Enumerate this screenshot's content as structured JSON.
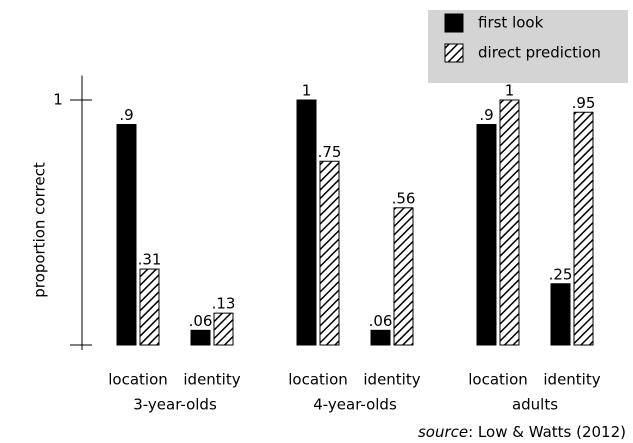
{
  "chart_data": {
    "type": "bar",
    "y_label": "proportion correct",
    "groups": [
      "3-year-olds",
      "4-year-olds",
      "adults"
    ],
    "categories": [
      "location",
      "identity",
      "location",
      "identity",
      "location",
      "identity"
    ],
    "series": [
      {
        "name": "first look",
        "color": "#000000",
        "pattern": "solid",
        "values": [
          0.9,
          0.06,
          1,
          0.06,
          0.9,
          0.25
        ],
        "value_labels": [
          ".9",
          ".06",
          "1",
          ".06",
          ".9",
          ".25"
        ]
      },
      {
        "name": "direct prediction",
        "color": "#000000",
        "pattern": "hatched",
        "values": [
          0.31,
          0.13,
          0.75,
          0.56,
          1,
          0.95
        ],
        "value_labels": [
          ".31",
          ".13",
          ".75",
          ".56",
          "1",
          ".95"
        ]
      }
    ],
    "ylim": [
      0,
      1.1
    ],
    "yticks": [
      1
    ],
    "legend": "top-right",
    "source_label": "source",
    "source_text": ": Low & Watts (2012)"
  }
}
